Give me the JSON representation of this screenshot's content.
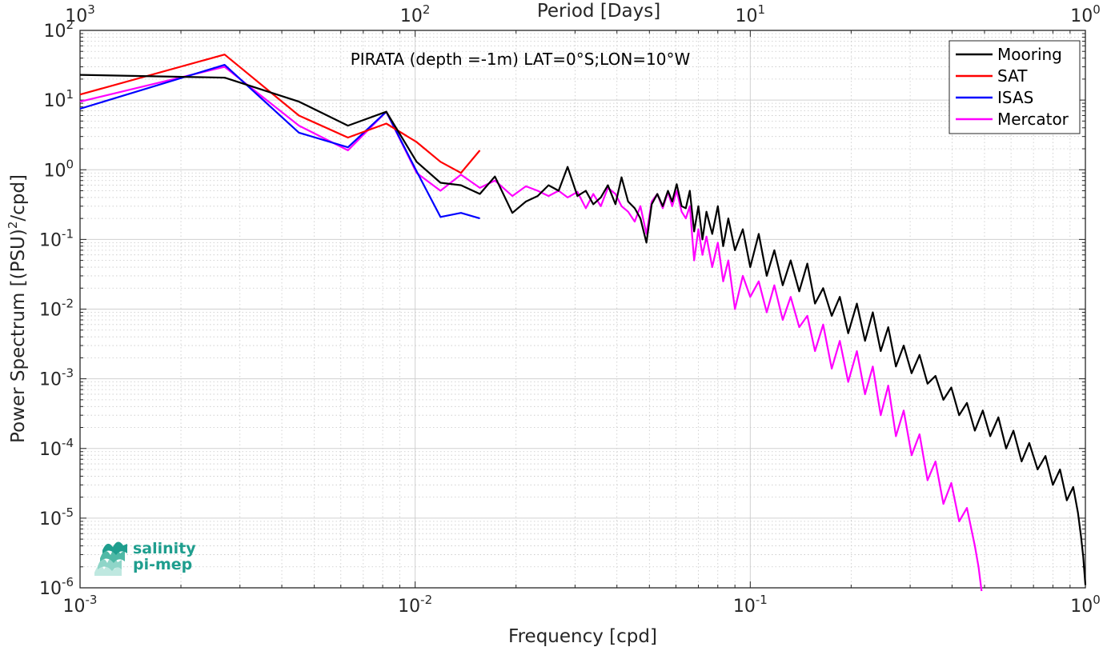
{
  "chart_data": {
    "type": "line",
    "title": "",
    "annotation": "PIRATA (depth =-1m) LAT=0°S;LON=10°W",
    "xlabel": "Frequency [cpd]",
    "x2label": "Period [Days]",
    "ylabel_main": "Power Spectrum [(PSU)",
    "ylabel_sup": "2",
    "ylabel_tail": "/cpd]",
    "xscale": "log",
    "yscale": "log",
    "xlim": [
      0.001,
      1
    ],
    "ylim": [
      1e-06,
      100
    ],
    "grid": true,
    "legend_position": "top-right",
    "x_ticks": [
      {
        "value": 0.001,
        "base": "10",
        "exp": "-3"
      },
      {
        "value": 0.01,
        "base": "10",
        "exp": "-2"
      },
      {
        "value": 0.1,
        "base": "10",
        "exp": "-1"
      },
      {
        "value": 1,
        "base": "10",
        "exp": "0"
      }
    ],
    "x2_ticks": [
      {
        "value": 1000,
        "base": "10",
        "exp": "3"
      },
      {
        "value": 100,
        "base": "10",
        "exp": "2"
      },
      {
        "value": 10,
        "base": "10",
        "exp": "1"
      },
      {
        "value": 1,
        "base": "10",
        "exp": "0"
      }
    ],
    "y_ticks": [
      {
        "value": 1e-06,
        "base": "10",
        "exp": "-6"
      },
      {
        "value": 1e-05,
        "base": "10",
        "exp": "-5"
      },
      {
        "value": 0.0001,
        "base": "10",
        "exp": "-4"
      },
      {
        "value": 0.001,
        "base": "10",
        "exp": "-3"
      },
      {
        "value": 0.01,
        "base": "10",
        "exp": "-2"
      },
      {
        "value": 0.1,
        "base": "10",
        "exp": "-1"
      },
      {
        "value": 1,
        "base": "10",
        "exp": "0"
      },
      {
        "value": 10,
        "base": "10",
        "exp": "1"
      },
      {
        "value": 100,
        "base": "10",
        "exp": "2"
      }
    ],
    "series": [
      {
        "name": "Mooring",
        "color": "#000000",
        "x": [
          0.001,
          0.0027,
          0.0045,
          0.0063,
          0.0082,
          0.0101,
          0.0119,
          0.0137,
          0.0156,
          0.0173,
          0.0195,
          0.0214,
          0.0232,
          0.025,
          0.0268,
          0.0285,
          0.0305,
          0.0323,
          0.034,
          0.0358,
          0.0376,
          0.0396,
          0.0413,
          0.0432,
          0.0452,
          0.047,
          0.049,
          0.0508,
          0.0528,
          0.0548,
          0.0568,
          0.0585,
          0.0603,
          0.0624,
          0.0642,
          0.066,
          0.068,
          0.07,
          0.072,
          0.074,
          0.077,
          0.08,
          0.083,
          0.086,
          0.09,
          0.095,
          0.1,
          0.106,
          0.112,
          0.118,
          0.125,
          0.132,
          0.14,
          0.148,
          0.156,
          0.165,
          0.175,
          0.185,
          0.196,
          0.208,
          0.22,
          0.232,
          0.245,
          0.258,
          0.272,
          0.287,
          0.303,
          0.32,
          0.338,
          0.357,
          0.377,
          0.398,
          0.42,
          0.443,
          0.468,
          0.494,
          0.52,
          0.55,
          0.58,
          0.61,
          0.645,
          0.68,
          0.72,
          0.76,
          0.8,
          0.84,
          0.88,
          0.92,
          0.95,
          0.97,
          0.985,
          1.0
        ],
        "y": [
          23,
          21,
          9.5,
          4.3,
          6.8,
          1.3,
          0.65,
          0.6,
          0.45,
          0.8,
          0.24,
          0.35,
          0.42,
          0.6,
          0.5,
          1.1,
          0.42,
          0.5,
          0.32,
          0.4,
          0.6,
          0.32,
          0.78,
          0.35,
          0.28,
          0.2,
          0.09,
          0.32,
          0.45,
          0.3,
          0.5,
          0.35,
          0.62,
          0.3,
          0.28,
          0.5,
          0.13,
          0.3,
          0.1,
          0.25,
          0.12,
          0.3,
          0.08,
          0.2,
          0.07,
          0.14,
          0.04,
          0.12,
          0.03,
          0.07,
          0.022,
          0.05,
          0.018,
          0.045,
          0.012,
          0.02,
          0.008,
          0.015,
          0.0045,
          0.012,
          0.0035,
          0.009,
          0.0025,
          0.0055,
          0.0015,
          0.003,
          0.0012,
          0.0022,
          0.00085,
          0.0011,
          0.0005,
          0.00075,
          0.0003,
          0.00045,
          0.00018,
          0.00035,
          0.00015,
          0.00028,
          0.0001,
          0.00018,
          6.5e-05,
          0.00012,
          5e-05,
          7.8e-05,
          3e-05,
          5e-05,
          1.8e-05,
          2.8e-05,
          1.2e-05,
          5.5e-06,
          2.8e-06,
          1.1e-06
        ]
      },
      {
        "name": "SAT",
        "color": "#ff0000",
        "x": [
          0.001,
          0.0027,
          0.0045,
          0.0063,
          0.0082,
          0.0101,
          0.0119,
          0.0137,
          0.0156
        ],
        "y": [
          12,
          45,
          6,
          2.9,
          4.6,
          2.5,
          1.3,
          0.9,
          1.9
        ]
      },
      {
        "name": "ISAS",
        "color": "#0000ff",
        "x": [
          0.001,
          0.0027,
          0.0045,
          0.0063,
          0.0082,
          0.0101,
          0.0119,
          0.0137,
          0.0156
        ],
        "y": [
          7.5,
          32,
          3.4,
          2.1,
          6.8,
          0.95,
          0.21,
          0.24,
          0.2
        ]
      },
      {
        "name": "Mercator",
        "color": "#ff00ff",
        "x": [
          0.001,
          0.0027,
          0.0045,
          0.0063,
          0.0082,
          0.0101,
          0.0119,
          0.0137,
          0.0156,
          0.0173,
          0.0195,
          0.0214,
          0.0232,
          0.025,
          0.0268,
          0.0285,
          0.0305,
          0.0323,
          0.034,
          0.0358,
          0.0376,
          0.0396,
          0.0413,
          0.0432,
          0.0452,
          0.047,
          0.049,
          0.0508,
          0.0528,
          0.0548,
          0.0568,
          0.0585,
          0.0603,
          0.0624,
          0.0642,
          0.066,
          0.068,
          0.07,
          0.072,
          0.074,
          0.077,
          0.08,
          0.083,
          0.086,
          0.09,
          0.095,
          0.1,
          0.106,
          0.112,
          0.118,
          0.125,
          0.132,
          0.14,
          0.148,
          0.156,
          0.165,
          0.175,
          0.185,
          0.196,
          0.208,
          0.22,
          0.232,
          0.245,
          0.258,
          0.272,
          0.287,
          0.303,
          0.32,
          0.338,
          0.357,
          0.377,
          0.398,
          0.42,
          0.443,
          0.468,
          0.48,
          0.49
        ],
        "y": [
          9.5,
          30,
          4.3,
          1.9,
          6.8,
          0.9,
          0.5,
          0.85,
          0.55,
          0.7,
          0.42,
          0.58,
          0.5,
          0.42,
          0.5,
          0.4,
          0.48,
          0.28,
          0.45,
          0.3,
          0.55,
          0.45,
          0.3,
          0.25,
          0.18,
          0.3,
          0.12,
          0.35,
          0.45,
          0.28,
          0.48,
          0.3,
          0.5,
          0.25,
          0.2,
          0.3,
          0.05,
          0.14,
          0.06,
          0.11,
          0.04,
          0.09,
          0.025,
          0.05,
          0.01,
          0.03,
          0.015,
          0.025,
          0.009,
          0.022,
          0.007,
          0.015,
          0.0055,
          0.008,
          0.0025,
          0.006,
          0.0014,
          0.0035,
          0.0009,
          0.0025,
          0.0006,
          0.0015,
          0.0003,
          0.0008,
          0.00015,
          0.00035,
          8e-05,
          0.00016,
          3.5e-05,
          6.5e-05,
          1.6e-05,
          3.2e-05,
          9e-06,
          1.4e-05,
          4e-06,
          2e-06,
          9e-07
        ]
      }
    ]
  },
  "logo": {
    "line1": "salinity",
    "line2": "pi-mep"
  }
}
